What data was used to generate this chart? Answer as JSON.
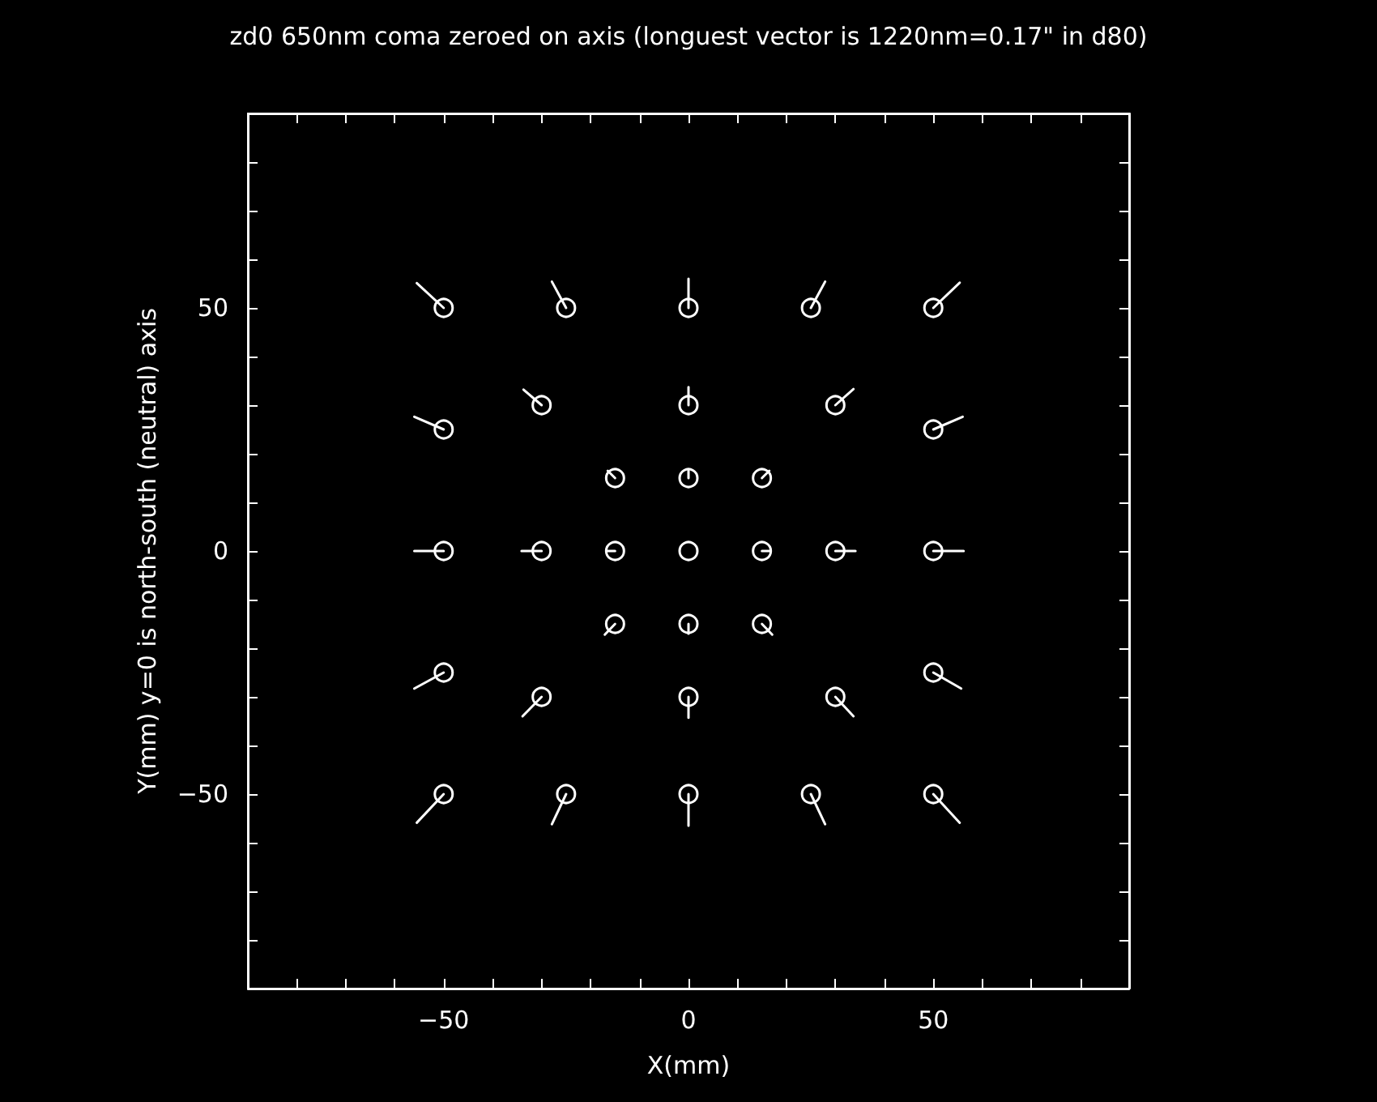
{
  "chart_data": {
    "type": "scatter",
    "title": "zd0 650nm coma zeroed on axis (longuest vector is 1220nm=0.17\" in d80)",
    "xlabel": "X(mm)",
    "ylabel": "Y(mm) y=0 is north-south (neutral) axis",
    "xlim": [
      -90,
      90
    ],
    "ylim": [
      -90,
      90
    ],
    "xticks": [
      {
        "value": -80,
        "label": null
      },
      {
        "value": -70,
        "label": null
      },
      {
        "value": -60,
        "label": null
      },
      {
        "value": -50,
        "label": "−50"
      },
      {
        "value": -40,
        "label": null
      },
      {
        "value": -30,
        "label": null
      },
      {
        "value": -20,
        "label": null
      },
      {
        "value": -10,
        "label": null
      },
      0,
      {
        "value": 10,
        "label": null
      },
      {
        "value": 20,
        "label": null
      },
      {
        "value": 30,
        "label": null
      },
      {
        "value": 40,
        "label": null
      },
      50,
      {
        "value": 60,
        "label": null
      },
      {
        "value": 70,
        "label": null
      },
      {
        "value": 80,
        "label": null
      }
    ],
    "yticks": [
      {
        "value": -80,
        "label": null
      },
      {
        "value": -70,
        "label": null
      },
      {
        "value": -60,
        "label": null
      },
      {
        "value": -50,
        "label": "−50"
      },
      {
        "value": -40,
        "label": null
      },
      {
        "value": -30,
        "label": null
      },
      {
        "value": -20,
        "label": null
      },
      {
        "value": -10,
        "label": null
      },
      0,
      {
        "value": 10,
        "label": null
      },
      {
        "value": 20,
        "label": null
      },
      {
        "value": 30,
        "label": null
      },
      {
        "value": 40,
        "label": null
      },
      50,
      {
        "value": 60,
        "label": null
      },
      {
        "value": 70,
        "label": null
      },
      {
        "value": 80,
        "label": null
      }
    ],
    "grid": false,
    "marker": "circle",
    "series": [
      {
        "color": "#ffffff",
        "x": [
          -50,
          -25,
          0,
          25,
          50,
          -50,
          -30,
          0,
          30,
          50,
          -15,
          0,
          15,
          -50,
          -30,
          -15,
          0,
          15,
          30,
          50,
          -15,
          0,
          15,
          -50,
          -30,
          0,
          30,
          50,
          -50,
          -25,
          0,
          25,
          50
        ],
        "values": [
          50,
          50,
          50,
          50,
          50,
          25,
          30,
          30,
          30,
          25,
          15,
          15,
          15,
          0,
          0,
          0,
          0,
          0,
          0,
          0,
          -15,
          -15,
          -15,
          -25,
          -30,
          -30,
          -30,
          -25,
          -50,
          -50,
          -50,
          -50,
          -50
        ]
      },
      {
        "type": "line",
        "color": "#ffffff",
        "marker": "none",
        "x": [
          -50,
          -55.5
        ],
        "values": [
          50,
          55.1
        ]
      },
      {
        "type": "line",
        "color": "#ffffff",
        "marker": "none",
        "x": [
          -25,
          -27.9
        ],
        "values": [
          50,
          55.4
        ]
      },
      {
        "type": "line",
        "color": "#ffffff",
        "marker": "none",
        "x": [
          0,
          0
        ],
        "values": [
          50,
          56
        ]
      },
      {
        "type": "line",
        "color": "#ffffff",
        "marker": "none",
        "x": [
          25,
          27.9
        ],
        "values": [
          50,
          55.4
        ]
      },
      {
        "type": "line",
        "color": "#ffffff",
        "marker": "none",
        "x": [
          50,
          55.4
        ],
        "values": [
          50,
          55.2
        ]
      },
      {
        "type": "line",
        "color": "#ffffff",
        "marker": "none",
        "x": [
          -50,
          -56
        ],
        "values": [
          25,
          27.6
        ]
      },
      {
        "type": "line",
        "color": "#ffffff",
        "marker": "none",
        "x": [
          -30,
          -33.7
        ],
        "values": [
          30,
          33.2
        ]
      },
      {
        "type": "line",
        "color": "#ffffff",
        "marker": "none",
        "x": [
          0,
          0
        ],
        "values": [
          30,
          33.7
        ]
      },
      {
        "type": "line",
        "color": "#ffffff",
        "marker": "none",
        "x": [
          30,
          33.7
        ],
        "values": [
          30,
          33.3
        ]
      },
      {
        "type": "line",
        "color": "#ffffff",
        "marker": "none",
        "x": [
          50,
          56
        ],
        "values": [
          25,
          27.6
        ]
      },
      {
        "type": "line",
        "color": "#ffffff",
        "marker": "none",
        "x": [
          -15,
          -16.5
        ],
        "values": [
          15,
          16.5
        ]
      },
      {
        "type": "line",
        "color": "#ffffff",
        "marker": "none",
        "x": [
          0,
          0
        ],
        "values": [
          15,
          16.5
        ]
      },
      {
        "type": "line",
        "color": "#ffffff",
        "marker": "none",
        "x": [
          15,
          16.5
        ],
        "values": [
          15,
          16.5
        ]
      },
      {
        "type": "line",
        "color": "#ffffff",
        "marker": "none",
        "x": [
          -50,
          -56
        ],
        "values": [
          0,
          0
        ]
      },
      {
        "type": "line",
        "color": "#ffffff",
        "marker": "none",
        "x": [
          -30,
          -34.1
        ],
        "values": [
          0,
          0
        ]
      },
      {
        "type": "line",
        "color": "#ffffff",
        "marker": "none",
        "x": [
          -15,
          -16.5
        ],
        "values": [
          0,
          0
        ]
      },
      {
        "type": "line",
        "color": "#ffffff",
        "marker": "none",
        "x": [
          15,
          16.5
        ],
        "values": [
          0,
          0
        ]
      },
      {
        "type": "line",
        "color": "#ffffff",
        "marker": "none",
        "x": [
          30,
          34.1
        ],
        "values": [
          0,
          0
        ]
      },
      {
        "type": "line",
        "color": "#ffffff",
        "marker": "none",
        "x": [
          50,
          56.2
        ],
        "values": [
          0,
          0
        ]
      },
      {
        "type": "line",
        "color": "#ffffff",
        "marker": "none",
        "x": [
          -15,
          -17.1
        ],
        "values": [
          -15,
          -17.2
        ]
      },
      {
        "type": "line",
        "color": "#ffffff",
        "marker": "none",
        "x": [
          0,
          0
        ],
        "values": [
          -15,
          -17
        ]
      },
      {
        "type": "line",
        "color": "#ffffff",
        "marker": "none",
        "x": [
          15,
          17.1
        ],
        "values": [
          -15,
          -17.2
        ]
      },
      {
        "type": "line",
        "color": "#ffffff",
        "marker": "none",
        "x": [
          -50,
          -56
        ],
        "values": [
          -25,
          -28.3
        ]
      },
      {
        "type": "line",
        "color": "#ffffff",
        "marker": "none",
        "x": [
          -30,
          -33.9
        ],
        "values": [
          -30,
          -34
        ]
      },
      {
        "type": "line",
        "color": "#ffffff",
        "marker": "none",
        "x": [
          0,
          0
        ],
        "values": [
          -30,
          -34.3
        ]
      },
      {
        "type": "line",
        "color": "#ffffff",
        "marker": "none",
        "x": [
          30,
          33.7
        ],
        "values": [
          -30,
          -34
        ]
      },
      {
        "type": "line",
        "color": "#ffffff",
        "marker": "none",
        "x": [
          50,
          55.7
        ],
        "values": [
          -25,
          -28.3
        ]
      },
      {
        "type": "line",
        "color": "#ffffff",
        "marker": "none",
        "x": [
          -50,
          -55.5
        ],
        "values": [
          -50,
          -55.9
        ]
      },
      {
        "type": "line",
        "color": "#ffffff",
        "marker": "none",
        "x": [
          -25,
          -27.9
        ],
        "values": [
          -50,
          -56.2
        ]
      },
      {
        "type": "line",
        "color": "#ffffff",
        "marker": "none",
        "x": [
          0,
          0
        ],
        "values": [
          -50,
          -56.5
        ]
      },
      {
        "type": "line",
        "color": "#ffffff",
        "marker": "none",
        "x": [
          25,
          27.9
        ],
        "values": [
          -50,
          -56.2
        ]
      },
      {
        "type": "line",
        "color": "#ffffff",
        "marker": "none",
        "x": [
          50,
          55.4
        ],
        "values": [
          -50,
          -55.9
        ]
      }
    ]
  }
}
